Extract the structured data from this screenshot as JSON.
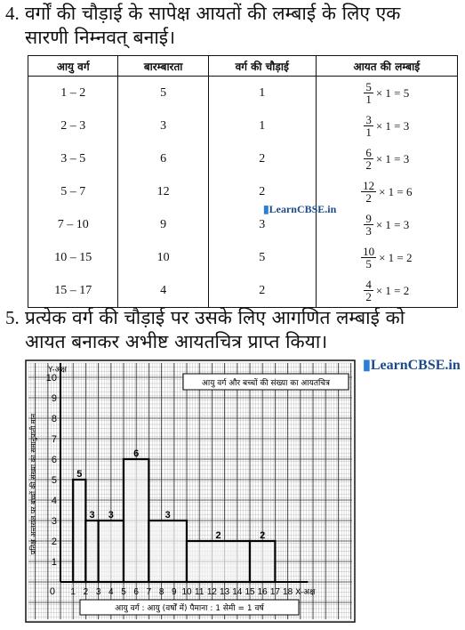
{
  "q4": {
    "number": "4.",
    "line1": "वर्गों की चौड़ाई के सापेक्ष आयतों की लम्बाई के लिए एक",
    "line2": "सारणी निम्नवत् बनाई।"
  },
  "table": {
    "headers": [
      "आयु वर्ग",
      "बारम्बारता",
      "वर्ग की चौड़ाई",
      "आयत की लम्बाई"
    ],
    "rows": [
      {
        "cls": "1 – 2",
        "freq": "5",
        "width": "1",
        "num": "5",
        "den": "1",
        "result": "× 1 = 5"
      },
      {
        "cls": "2 – 3",
        "freq": "3",
        "width": "1",
        "num": "3",
        "den": "1",
        "result": "× 1 = 3"
      },
      {
        "cls": "3 – 5",
        "freq": "6",
        "width": "2",
        "num": "6",
        "den": "2",
        "result": "× 1 = 3"
      },
      {
        "cls": "5 – 7",
        "freq": "12",
        "width": "2",
        "num": "12",
        "den": "2",
        "result": "× 1 = 6"
      },
      {
        "cls": "7 – 10",
        "freq": "9",
        "width": "3",
        "num": "9",
        "den": "3",
        "result": "× 1 = 3"
      },
      {
        "cls": "10 – 15",
        "freq": "10",
        "width": "5",
        "num": "10",
        "den": "5",
        "result": "× 1 = 2"
      },
      {
        "cls": "15 – 17",
        "freq": "4",
        "width": "2",
        "num": "4",
        "den": "2",
        "result": "× 1 = 2"
      }
    ]
  },
  "watermark": "LearnCBSE.in",
  "q5": {
    "number": "5.",
    "line1": "प्रत्येक वर्ग की चौड़ाई पर उसके लिए आगणित लम्बाई को",
    "line2": "आयत बनाकर अभीष्ट आयतचित्र प्राप्त किया।"
  },
  "chart_data": {
    "type": "bar",
    "title": "आयु वर्ग और बच्चों की संख्या का आयतचित्र",
    "xlabel": "X-अक्ष",
    "ylabel": "Y-अक्ष",
    "y_axis_title": "प्रतिक्ष अन्तराल पर बच्चों की संख्या का समानुपाती मान",
    "caption": "आयु वर्ग : आयु (वर्षों में) पैमाना : 1 सेमी = 1 वर्ष",
    "xlim": [
      0,
      18
    ],
    "ylim": [
      0,
      10
    ],
    "x_ticks": [
      "1",
      "2",
      "3",
      "4",
      "5",
      "6",
      "7",
      "8",
      "9",
      "10",
      "11",
      "12",
      "13",
      "14",
      "15",
      "16",
      "17",
      "18"
    ],
    "y_ticks": [
      "1",
      "2",
      "3",
      "4",
      "5",
      "6",
      "7",
      "8",
      "9",
      "10"
    ],
    "origin_label": "0",
    "bars": [
      {
        "x0": 1,
        "x1": 2,
        "value": 5,
        "label": "5"
      },
      {
        "x0": 2,
        "x1": 3,
        "value": 3,
        "label": "3"
      },
      {
        "x0": 3,
        "x1": 5,
        "value": 3,
        "label": "3"
      },
      {
        "x0": 5,
        "x1": 7,
        "value": 6,
        "label": "6"
      },
      {
        "x0": 7,
        "x1": 10,
        "value": 3,
        "label": "3"
      },
      {
        "x0": 10,
        "x1": 15,
        "value": 2,
        "label": "2"
      },
      {
        "x0": 15,
        "x1": 17,
        "value": 2,
        "label": "2"
      }
    ],
    "grid": true
  }
}
